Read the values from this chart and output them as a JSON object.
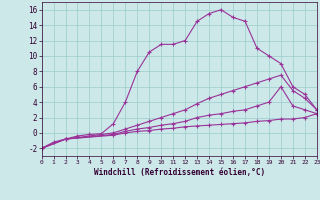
{
  "xlabel": "Windchill (Refroidissement éolien,°C)",
  "background_color": "#cce8e8",
  "line_color": "#993399",
  "grid_color": "#99cccc",
  "xlim": [
    0,
    23
  ],
  "ylim": [
    -3,
    17
  ],
  "xticks": [
    0,
    1,
    2,
    3,
    4,
    5,
    6,
    7,
    8,
    9,
    10,
    11,
    12,
    13,
    14,
    15,
    16,
    17,
    18,
    19,
    20,
    21,
    22,
    23
  ],
  "yticks": [
    -2,
    0,
    2,
    4,
    6,
    8,
    10,
    12,
    14,
    16
  ],
  "lines": [
    {
      "x": [
        0,
        1,
        2,
        3,
        4,
        5,
        6,
        7,
        8,
        9,
        10,
        11,
        12,
        13,
        14,
        15,
        16,
        17,
        18,
        19,
        20,
        21,
        22,
        23
      ],
      "y": [
        -2,
        -1.2,
        -0.8,
        -0.4,
        -0.2,
        -0.1,
        1.2,
        4.0,
        8.0,
        10.5,
        11.5,
        11.5,
        12.0,
        14.5,
        15.5,
        16.0,
        15.0,
        14.5,
        11.0,
        10.0,
        9.0,
        6.0,
        5.0,
        3.0
      ]
    },
    {
      "x": [
        0,
        2,
        6,
        7,
        8,
        9,
        10,
        11,
        12,
        13,
        14,
        15,
        16,
        17,
        18,
        19,
        20,
        21,
        22,
        23
      ],
      "y": [
        -2,
        -0.8,
        0.0,
        0.5,
        1.0,
        1.5,
        2.0,
        2.5,
        3.0,
        3.8,
        4.5,
        5.0,
        5.5,
        6.0,
        6.5,
        7.0,
        7.5,
        5.5,
        4.5,
        3.0
      ]
    },
    {
      "x": [
        0,
        2,
        6,
        7,
        8,
        9,
        10,
        11,
        12,
        13,
        14,
        15,
        16,
        17,
        18,
        19,
        20,
        21,
        22,
        23
      ],
      "y": [
        -2,
        -0.8,
        -0.2,
        0.2,
        0.5,
        0.7,
        1.0,
        1.2,
        1.5,
        2.0,
        2.3,
        2.5,
        2.8,
        3.0,
        3.5,
        4.0,
        6.0,
        3.5,
        3.0,
        2.5
      ]
    },
    {
      "x": [
        0,
        2,
        6,
        7,
        8,
        9,
        10,
        11,
        12,
        13,
        14,
        15,
        16,
        17,
        18,
        19,
        20,
        21,
        22,
        23
      ],
      "y": [
        -2,
        -0.8,
        -0.3,
        0.0,
        0.2,
        0.3,
        0.5,
        0.6,
        0.8,
        0.9,
        1.0,
        1.1,
        1.2,
        1.3,
        1.5,
        1.6,
        1.8,
        1.8,
        2.0,
        2.5
      ]
    }
  ]
}
